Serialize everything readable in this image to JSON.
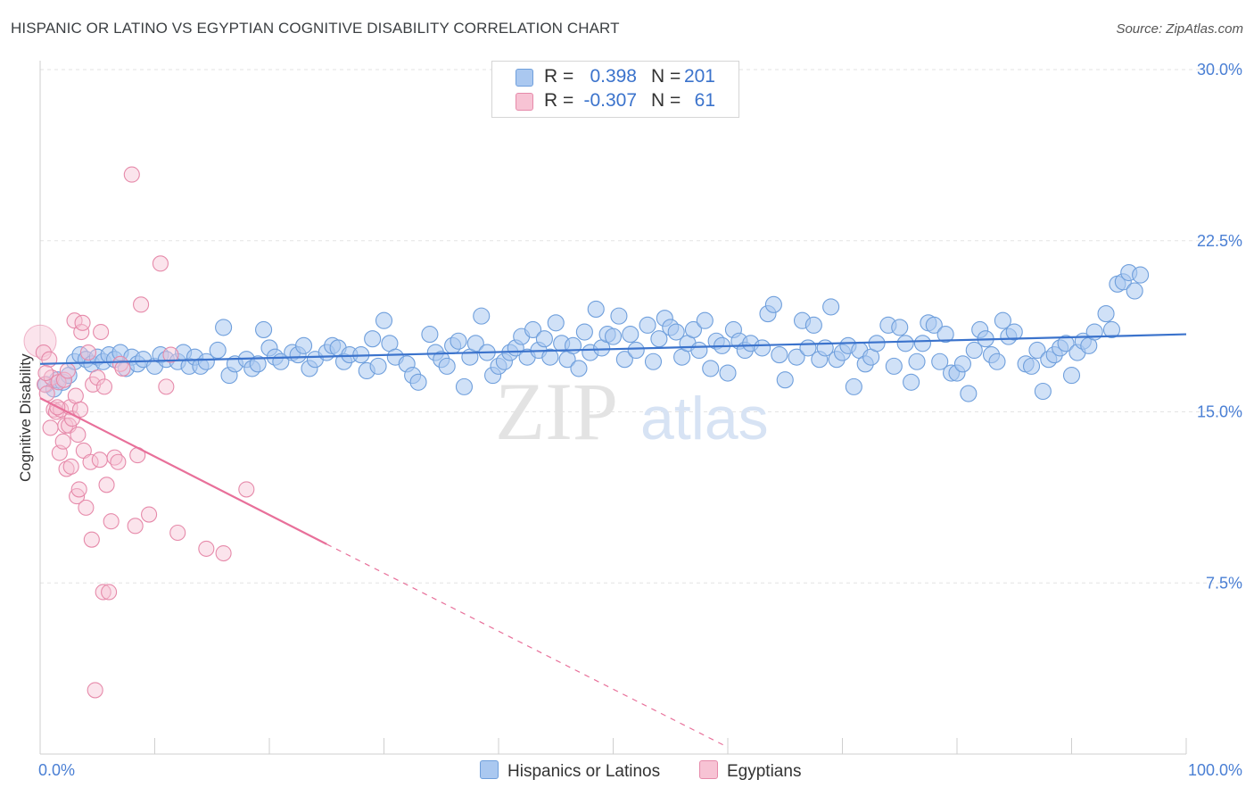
{
  "title": "HISPANIC OR LATINO VS EGYPTIAN COGNITIVE DISABILITY CORRELATION CHART",
  "source": "Source: ZipAtlas.com",
  "watermark": {
    "zip": "ZIP",
    "atlas": "atlas"
  },
  "legend": {
    "rows": [
      {
        "r_label": "R =",
        "r_value": "0.398",
        "n_label": "N =",
        "n_value": "201",
        "color": "#aac8f0",
        "border": "#6f9fdc"
      },
      {
        "r_label": "R =",
        "r_value": "-0.307",
        "n_label": "N =",
        "n_value": "61",
        "color": "#f7c3d4",
        "border": "#e68aaa"
      }
    ]
  },
  "bottom_legend": [
    {
      "label": "Hispanics or Latinos",
      "color": "#aac8f0",
      "border": "#6f9fdc"
    },
    {
      "label": "Egyptians",
      "color": "#f7c3d4",
      "border": "#e68aaa"
    }
  ],
  "chart_data": {
    "type": "scatter",
    "title": "HISPANIC OR LATINO VS EGYPTIAN COGNITIVE DISABILITY CORRELATION CHART",
    "xlabel": "",
    "ylabel": "Cognitive Disability",
    "xlim": [
      0,
      100
    ],
    "ylim": [
      0,
      30
    ],
    "x_tick_labels": [
      "0.0%",
      "100.0%"
    ],
    "y_ticks": [
      7.5,
      15.0,
      22.5,
      30.0
    ],
    "y_tick_labels": [
      "7.5%",
      "15.0%",
      "22.5%",
      "30.0%"
    ],
    "grid": true,
    "legend_position": "top-center",
    "series": [
      {
        "name": "Hispanics or Latinos",
        "color": "#6f9fdc",
        "fill": "#aac8f0",
        "trend": {
          "x": [
            0,
            100
          ],
          "y": [
            17.1,
            18.4
          ],
          "color": "#3b73cc"
        },
        "points": [
          [
            0.5,
            16.2
          ],
          [
            1.2,
            16.0
          ],
          [
            1.5,
            16.4
          ],
          [
            2.0,
            16.3
          ],
          [
            2.5,
            16.6
          ],
          [
            3.0,
            17.2
          ],
          [
            3.5,
            17.5
          ],
          [
            4.0,
            17.3
          ],
          [
            4.5,
            17.1
          ],
          [
            5.0,
            17.4
          ],
          [
            5.5,
            17.2
          ],
          [
            6.0,
            17.5
          ],
          [
            6.5,
            17.3
          ],
          [
            7.0,
            17.6
          ],
          [
            7.5,
            16.9
          ],
          [
            8.0,
            17.4
          ],
          [
            8.5,
            17.1
          ],
          [
            9.0,
            17.3
          ],
          [
            10.0,
            17.0
          ],
          [
            10.5,
            17.5
          ],
          [
            11.0,
            17.3
          ],
          [
            12.0,
            17.2
          ],
          [
            12.5,
            17.6
          ],
          [
            13.0,
            17.0
          ],
          [
            13.5,
            17.4
          ],
          [
            14.0,
            17.0
          ],
          [
            14.5,
            17.2
          ],
          [
            15.5,
            17.7
          ],
          [
            16.0,
            18.7
          ],
          [
            16.5,
            16.6
          ],
          [
            17.0,
            17.1
          ],
          [
            18.0,
            17.3
          ],
          [
            18.5,
            16.9
          ],
          [
            19.0,
            17.1
          ],
          [
            19.5,
            18.6
          ],
          [
            20.0,
            17.8
          ],
          [
            20.5,
            17.4
          ],
          [
            21.0,
            17.2
          ],
          [
            22.0,
            17.6
          ],
          [
            22.5,
            17.5
          ],
          [
            23.0,
            17.9
          ],
          [
            23.5,
            16.9
          ],
          [
            24.0,
            17.3
          ],
          [
            25.0,
            17.6
          ],
          [
            25.5,
            17.9
          ],
          [
            26.0,
            17.8
          ],
          [
            26.5,
            17.2
          ],
          [
            27.0,
            17.5
          ],
          [
            28.0,
            17.5
          ],
          [
            28.5,
            16.8
          ],
          [
            29.0,
            18.2
          ],
          [
            29.5,
            17.0
          ],
          [
            30.0,
            19.0
          ],
          [
            30.5,
            18.0
          ],
          [
            31.0,
            17.4
          ],
          [
            32.0,
            17.1
          ],
          [
            32.5,
            16.6
          ],
          [
            33.0,
            16.3
          ],
          [
            34.0,
            18.4
          ],
          [
            34.5,
            17.6
          ],
          [
            35.0,
            17.3
          ],
          [
            35.5,
            17.0
          ],
          [
            36.0,
            17.9
          ],
          [
            36.5,
            18.1
          ],
          [
            37.0,
            16.1
          ],
          [
            37.5,
            17.4
          ],
          [
            38.0,
            18.0
          ],
          [
            38.5,
            19.2
          ],
          [
            39.0,
            17.6
          ],
          [
            39.5,
            16.6
          ],
          [
            40.0,
            17.0
          ],
          [
            40.5,
            17.2
          ],
          [
            41.0,
            17.6
          ],
          [
            41.5,
            17.8
          ],
          [
            42.0,
            18.3
          ],
          [
            42.5,
            17.4
          ],
          [
            43.0,
            18.6
          ],
          [
            43.5,
            17.7
          ],
          [
            44.0,
            18.2
          ],
          [
            44.5,
            17.4
          ],
          [
            45.0,
            18.9
          ],
          [
            45.5,
            18.0
          ],
          [
            46.0,
            17.3
          ],
          [
            46.5,
            17.9
          ],
          [
            47.0,
            16.9
          ],
          [
            47.5,
            18.5
          ],
          [
            48.0,
            17.6
          ],
          [
            48.5,
            19.5
          ],
          [
            49.0,
            17.8
          ],
          [
            49.5,
            18.4
          ],
          [
            50.0,
            18.3
          ],
          [
            50.5,
            19.2
          ],
          [
            51.0,
            17.3
          ],
          [
            51.5,
            18.4
          ],
          [
            52.0,
            17.7
          ],
          [
            53.0,
            18.8
          ],
          [
            53.5,
            17.2
          ],
          [
            54.0,
            18.2
          ],
          [
            54.5,
            19.1
          ],
          [
            55.0,
            18.7
          ],
          [
            55.5,
            18.5
          ],
          [
            56.0,
            17.4
          ],
          [
            56.5,
            18.0
          ],
          [
            57.0,
            18.6
          ],
          [
            57.5,
            17.7
          ],
          [
            58.0,
            19.0
          ],
          [
            58.5,
            16.9
          ],
          [
            59.0,
            18.1
          ],
          [
            59.5,
            17.9
          ],
          [
            60.0,
            16.7
          ],
          [
            60.5,
            18.6
          ],
          [
            61.0,
            18.1
          ],
          [
            61.5,
            17.7
          ],
          [
            62.0,
            18.0
          ],
          [
            63.0,
            17.8
          ],
          [
            63.5,
            19.3
          ],
          [
            64.0,
            19.7
          ],
          [
            64.5,
            17.5
          ],
          [
            65.0,
            16.4
          ],
          [
            66.0,
            17.4
          ],
          [
            66.5,
            19.0
          ],
          [
            67.0,
            17.8
          ],
          [
            67.5,
            18.8
          ],
          [
            68.0,
            17.3
          ],
          [
            68.5,
            17.8
          ],
          [
            69.0,
            19.6
          ],
          [
            69.5,
            17.3
          ],
          [
            70.0,
            17.6
          ],
          [
            70.5,
            17.9
          ],
          [
            71.0,
            16.1
          ],
          [
            71.5,
            17.7
          ],
          [
            72.0,
            17.1
          ],
          [
            72.5,
            17.4
          ],
          [
            73.0,
            18.0
          ],
          [
            74.0,
            18.8
          ],
          [
            74.5,
            17.0
          ],
          [
            75.0,
            18.7
          ],
          [
            75.5,
            18.0
          ],
          [
            76.0,
            16.3
          ],
          [
            76.5,
            17.2
          ],
          [
            77.0,
            18.0
          ],
          [
            77.5,
            18.9
          ],
          [
            78.0,
            18.8
          ],
          [
            78.5,
            17.2
          ],
          [
            79.0,
            18.4
          ],
          [
            79.5,
            16.7
          ],
          [
            80.0,
            16.7
          ],
          [
            80.5,
            17.1
          ],
          [
            81.0,
            15.8
          ],
          [
            81.5,
            17.7
          ],
          [
            82.0,
            18.6
          ],
          [
            82.5,
            18.2
          ],
          [
            83.0,
            17.5
          ],
          [
            83.5,
            17.2
          ],
          [
            84.0,
            19.0
          ],
          [
            84.5,
            18.3
          ],
          [
            85.0,
            18.5
          ],
          [
            86.0,
            17.1
          ],
          [
            86.5,
            17.0
          ],
          [
            87.0,
            17.7
          ],
          [
            87.5,
            15.9
          ],
          [
            88.0,
            17.3
          ],
          [
            88.5,
            17.5
          ],
          [
            89.0,
            17.8
          ],
          [
            89.5,
            18.0
          ],
          [
            90.0,
            16.6
          ],
          [
            90.5,
            17.6
          ],
          [
            91.0,
            18.1
          ],
          [
            91.5,
            17.9
          ],
          [
            92.0,
            18.5
          ],
          [
            93.0,
            19.3
          ],
          [
            93.5,
            18.6
          ],
          [
            94.0,
            20.6
          ],
          [
            94.5,
            20.7
          ],
          [
            95.0,
            21.1
          ],
          [
            95.5,
            20.3
          ],
          [
            96.0,
            21.0
          ]
        ]
      },
      {
        "name": "Egyptians",
        "color": "#e68aaa",
        "fill": "#f7c3d4",
        "trend": {
          "x": [
            0,
            25
          ],
          "y": [
            15.6,
            9.2
          ],
          "dash_to": [
            60,
            0.3
          ],
          "color": "#e8709a"
        },
        "points": [
          [
            0.3,
            17.6
          ],
          [
            0.4,
            16.2
          ],
          [
            0.6,
            15.8
          ],
          [
            0.8,
            17.3
          ],
          [
            1.0,
            16.5
          ],
          [
            1.2,
            15.1
          ],
          [
            1.4,
            15.0
          ],
          [
            1.6,
            16.3
          ],
          [
            1.7,
            13.2
          ],
          [
            1.8,
            15.1
          ],
          [
            2.0,
            13.7
          ],
          [
            2.1,
            16.4
          ],
          [
            2.2,
            14.4
          ],
          [
            2.3,
            12.5
          ],
          [
            2.5,
            14.4
          ],
          [
            2.6,
            15.2
          ],
          [
            2.7,
            12.6
          ],
          [
            2.8,
            14.7
          ],
          [
            3.0,
            19.0
          ],
          [
            3.1,
            15.7
          ],
          [
            3.2,
            11.3
          ],
          [
            3.4,
            11.6
          ],
          [
            3.5,
            15.1
          ],
          [
            3.6,
            18.5
          ],
          [
            3.7,
            18.9
          ],
          [
            3.8,
            13.3
          ],
          [
            4.0,
            10.8
          ],
          [
            4.2,
            17.6
          ],
          [
            4.4,
            12.8
          ],
          [
            4.5,
            9.4
          ],
          [
            4.6,
            16.2
          ],
          [
            4.8,
            2.8
          ],
          [
            5.0,
            16.5
          ],
          [
            5.2,
            12.9
          ],
          [
            5.3,
            18.5
          ],
          [
            5.5,
            7.1
          ],
          [
            5.6,
            16.1
          ],
          [
            5.8,
            11.8
          ],
          [
            6.0,
            7.1
          ],
          [
            6.2,
            10.2
          ],
          [
            6.5,
            13.0
          ],
          [
            6.8,
            12.8
          ],
          [
            7.0,
            17.1
          ],
          [
            7.2,
            16.9
          ],
          [
            8.0,
            25.4
          ],
          [
            8.3,
            10.0
          ],
          [
            8.5,
            13.1
          ],
          [
            8.8,
            19.7
          ],
          [
            9.5,
            10.5
          ],
          [
            10.5,
            21.5
          ],
          [
            11.0,
            16.1
          ],
          [
            11.4,
            17.5
          ],
          [
            12.0,
            9.7
          ],
          [
            14.5,
            9.0
          ],
          [
            16.0,
            8.8
          ],
          [
            18.0,
            11.6
          ],
          [
            3.3,
            14.0
          ],
          [
            1.5,
            15.2
          ],
          [
            2.4,
            16.8
          ],
          [
            0.9,
            14.3
          ],
          [
            0.5,
            16.7
          ]
        ]
      }
    ]
  }
}
